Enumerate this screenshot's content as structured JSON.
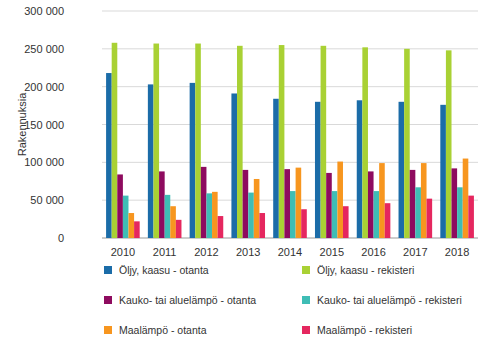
{
  "chart_data": {
    "type": "bar",
    "y_label": "Rakennuksia",
    "categories": [
      "2010",
      "2011",
      "2012",
      "2013",
      "2014",
      "2015",
      "2016",
      "2017",
      "2018"
    ],
    "series": [
      {
        "name": "Öljy, kaasu - otanta",
        "color": "#1b6ca8",
        "values": [
          218000,
          203000,
          205000,
          191000,
          184000,
          180000,
          182000,
          180000,
          176000
        ]
      },
      {
        "name": "Öljy, kaasu - rekisteri",
        "color": "#a9d134",
        "values": [
          258000,
          257000,
          257000,
          254000,
          255000,
          254000,
          252000,
          250000,
          248000
        ]
      },
      {
        "name": "Kauko- tai aluelämpö - otanta",
        "color": "#8e0b5f",
        "values": [
          84000,
          88000,
          94000,
          90000,
          91000,
          86000,
          88000,
          90000,
          92000
        ]
      },
      {
        "name": "Kauko- tai aluelämpö - rekisteri",
        "color": "#3fbdb5",
        "values": [
          56000,
          57000,
          59000,
          60000,
          62000,
          62000,
          62000,
          67000,
          67000
        ]
      },
      {
        "name": "Maalämpö - otanta",
        "color": "#f7961f",
        "values": [
          33000,
          42000,
          61000,
          78000,
          93000,
          101000,
          99000,
          99000,
          105000
        ]
      },
      {
        "name": "Maalämpö - rekisteri",
        "color": "#e5275f",
        "values": [
          22000,
          24000,
          29000,
          33000,
          38000,
          42000,
          46000,
          52000,
          56000
        ]
      }
    ],
    "ylim": [
      0,
      300000
    ],
    "yticks": [
      0,
      {
        "value": 50000,
        "label": "50 000"
      },
      {
        "value": 100000,
        "label": "100 000"
      },
      {
        "value": 150000,
        "label": "150 000"
      },
      {
        "value": 200000,
        "label": "200 000"
      },
      {
        "value": 250000,
        "label": "250 000"
      },
      {
        "value": 300000,
        "label": "300 000"
      }
    ],
    "grid": true,
    "legend": "bottom"
  }
}
